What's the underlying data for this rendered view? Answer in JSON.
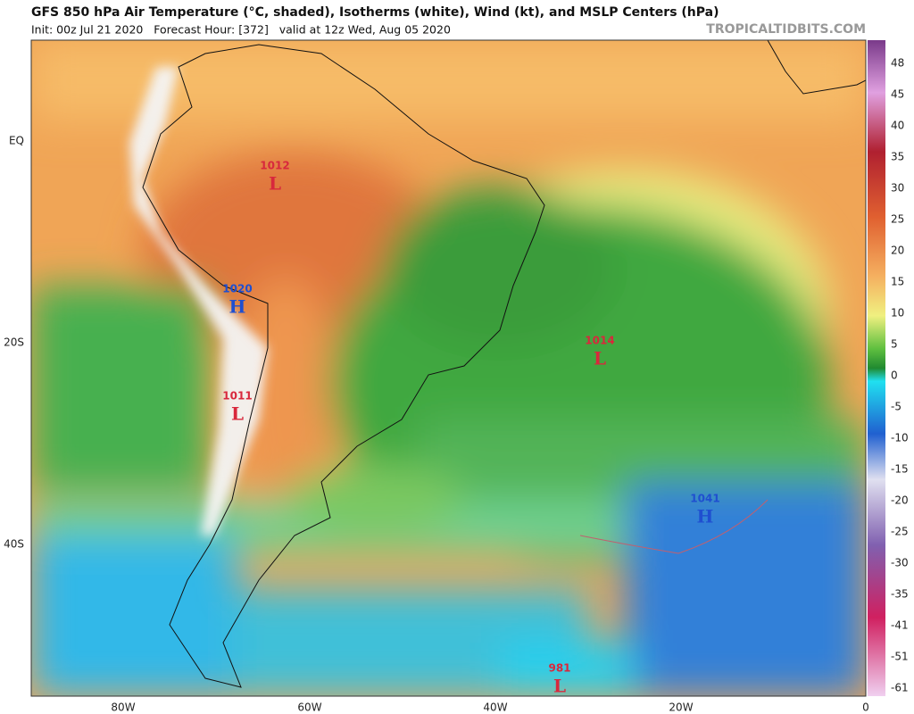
{
  "header": {
    "title": "GFS 850 hPa Air Temperature (°C, shaded), Isotherms (white), Wind (kt), and MSLP Centers (hPa)",
    "subtitle": "Init: 00z Jul 21 2020   Forecast Hour: [372]   valid at 12z Wed, Aug 05 2020",
    "credit": "TROPICALTIDBITS.COM"
  },
  "lat_labels": [
    "EQ",
    "20S",
    "40S"
  ],
  "lon_labels": [
    "80W",
    "60W",
    "40W",
    "20W",
    "0"
  ],
  "colorbar": [
    48,
    45,
    40,
    35,
    30,
    25,
    20,
    15,
    10,
    5,
    0,
    -5,
    -10,
    -15,
    -20,
    -25,
    -30,
    -35,
    -41,
    -51,
    -61
  ],
  "centers": [
    {
      "pressure": 1012,
      "letter": "L"
    },
    {
      "pressure": 1020,
      "letter": "H"
    },
    {
      "pressure": 1011,
      "letter": "L"
    },
    {
      "pressure": 1014,
      "letter": "L"
    },
    {
      "pressure": 1041,
      "letter": "H"
    },
    {
      "pressure": 981,
      "letter": "L"
    }
  ]
}
